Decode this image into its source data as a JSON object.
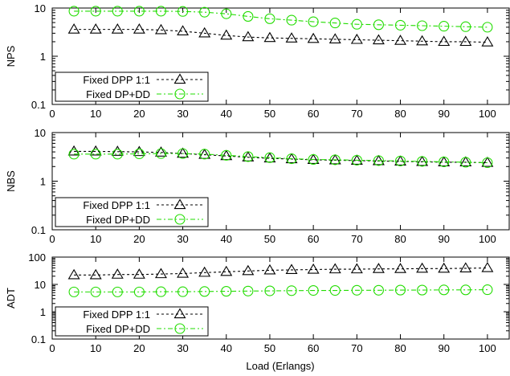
{
  "x_axis_label": "Load (Erlangs)",
  "colors": {
    "dpp": "#000000",
    "dp_dd": "#22dd00"
  },
  "chart_data": [
    {
      "type": "line",
      "ylabel": "NPS",
      "yscale": "log",
      "ylim": [
        0.1,
        10
      ],
      "xlim": [
        0,
        105
      ],
      "x_ticks": [
        0,
        10,
        20,
        30,
        40,
        50,
        60,
        70,
        80,
        90,
        100
      ],
      "y_ticks": [
        0.1,
        1,
        10
      ],
      "y_tick_labels": [
        "0.1",
        "1",
        "10"
      ],
      "legend": "bottom-left",
      "x": [
        5,
        10,
        15,
        20,
        25,
        30,
        35,
        40,
        45,
        50,
        55,
        60,
        65,
        70,
        75,
        80,
        85,
        90,
        95,
        100
      ],
      "series": [
        {
          "name": "Fixed DPP 1:1",
          "marker": "triangle",
          "color": "#000000",
          "values": [
            3.6,
            3.6,
            3.6,
            3.6,
            3.5,
            3.3,
            3.0,
            2.7,
            2.5,
            2.4,
            2.35,
            2.3,
            2.25,
            2.2,
            2.15,
            2.1,
            2.05,
            2.0,
            2.0,
            1.95
          ]
        },
        {
          "name": "Fixed DP+DD",
          "marker": "circle",
          "color": "#22dd00",
          "values": [
            8.6,
            8.6,
            8.6,
            8.6,
            8.6,
            8.5,
            8.2,
            7.6,
            6.7,
            6.0,
            5.6,
            5.2,
            4.9,
            4.6,
            4.5,
            4.4,
            4.3,
            4.2,
            4.1,
            4.0
          ]
        }
      ]
    },
    {
      "type": "line",
      "ylabel": "NBS",
      "yscale": "log",
      "ylim": [
        0.1,
        10
      ],
      "xlim": [
        0,
        105
      ],
      "x_ticks": [
        0,
        10,
        20,
        30,
        40,
        50,
        60,
        70,
        80,
        90,
        100
      ],
      "y_ticks": [
        0.1,
        1,
        10
      ],
      "y_tick_labels": [
        "0.1",
        "1",
        "10"
      ],
      "legend": "bottom-left",
      "x": [
        5,
        10,
        15,
        20,
        25,
        30,
        35,
        40,
        45,
        50,
        55,
        60,
        65,
        70,
        75,
        80,
        85,
        90,
        95,
        100
      ],
      "series": [
        {
          "name": "Fixed DPP 1:1",
          "marker": "triangle",
          "color": "#000000",
          "values": [
            4.1,
            4.1,
            4.05,
            4.0,
            3.9,
            3.7,
            3.5,
            3.3,
            3.1,
            2.95,
            2.85,
            2.75,
            2.7,
            2.65,
            2.6,
            2.55,
            2.5,
            2.45,
            2.45,
            2.4
          ]
        },
        {
          "name": "Fixed DP+DD",
          "marker": "circle",
          "color": "#22dd00",
          "values": [
            3.6,
            3.6,
            3.6,
            3.65,
            3.7,
            3.7,
            3.6,
            3.4,
            3.2,
            3.05,
            2.9,
            2.8,
            2.75,
            2.7,
            2.65,
            2.6,
            2.55,
            2.5,
            2.45,
            2.4
          ]
        }
      ]
    },
    {
      "type": "line",
      "ylabel": "ADT",
      "yscale": "log",
      "ylim": [
        0.1,
        100
      ],
      "xlim": [
        0,
        105
      ],
      "x_ticks": [
        0,
        10,
        20,
        30,
        40,
        50,
        60,
        70,
        80,
        90,
        100
      ],
      "y_ticks": [
        0.1,
        1,
        10,
        100
      ],
      "y_tick_labels": [
        "0.1",
        "1",
        "10",
        "100"
      ],
      "legend": "bottom-left",
      "x": [
        5,
        10,
        15,
        20,
        25,
        30,
        35,
        40,
        45,
        50,
        55,
        60,
        65,
        70,
        75,
        80,
        85,
        90,
        95,
        100
      ],
      "series": [
        {
          "name": "Fixed DPP 1:1",
          "marker": "triangle",
          "color": "#000000",
          "values": [
            22,
            22,
            23,
            23,
            24,
            25,
            27,
            29,
            31,
            33,
            34,
            35,
            36,
            36,
            37,
            37,
            38,
            38,
            39,
            40
          ]
        },
        {
          "name": "Fixed DP+DD",
          "marker": "circle",
          "color": "#22dd00",
          "values": [
            5.3,
            5.3,
            5.3,
            5.3,
            5.4,
            5.4,
            5.5,
            5.6,
            5.7,
            5.8,
            5.9,
            6.0,
            6.0,
            6.1,
            6.1,
            6.2,
            6.2,
            6.3,
            6.3,
            6.4
          ]
        }
      ]
    }
  ]
}
